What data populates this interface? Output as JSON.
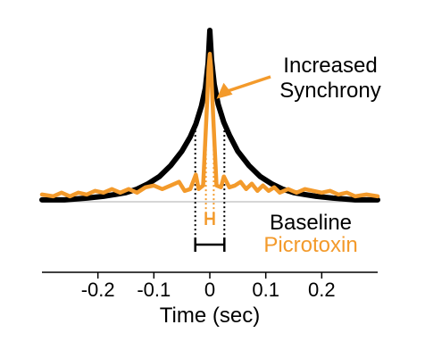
{
  "chart_data": {
    "type": "line",
    "title": "",
    "xlabel": "Time (sec)",
    "ylabel": "",
    "xlim": [
      -0.3,
      0.3
    ],
    "ylim": [
      0,
      1
    ],
    "grid": false,
    "x_ticks": [
      -0.2,
      -0.1,
      0,
      0.1,
      0.2
    ],
    "x_tick_labels": [
      "-0.2",
      "-0.1",
      "0",
      "0.1",
      "0.2"
    ],
    "baseline_level": 0.03,
    "series": [
      {
        "name": "Baseline",
        "color": "#000000",
        "points": [
          [
            -0.3,
            0.04
          ],
          [
            -0.26,
            0.04
          ],
          [
            -0.22,
            0.05
          ],
          [
            -0.19,
            0.06
          ],
          [
            -0.17,
            0.07
          ],
          [
            -0.15,
            0.08
          ],
          [
            -0.13,
            0.1
          ],
          [
            -0.11,
            0.13
          ],
          [
            -0.09,
            0.17
          ],
          [
            -0.07,
            0.23
          ],
          [
            -0.05,
            0.31
          ],
          [
            -0.035,
            0.39
          ],
          [
            -0.025,
            0.46
          ],
          [
            -0.015,
            0.56
          ],
          [
            -0.008,
            0.66
          ],
          [
            -0.003,
            0.8
          ],
          [
            0,
            0.98
          ],
          [
            0.003,
            0.82
          ],
          [
            0.008,
            0.68
          ],
          [
            0.015,
            0.57
          ],
          [
            0.025,
            0.47
          ],
          [
            0.035,
            0.4
          ],
          [
            0.05,
            0.31
          ],
          [
            0.07,
            0.23
          ],
          [
            0.09,
            0.17
          ],
          [
            0.11,
            0.13
          ],
          [
            0.13,
            0.1
          ],
          [
            0.15,
            0.08
          ],
          [
            0.17,
            0.07
          ],
          [
            0.19,
            0.06
          ],
          [
            0.22,
            0.05
          ],
          [
            0.26,
            0.04
          ],
          [
            0.3,
            0.04
          ]
        ]
      },
      {
        "name": "Picrotoxin",
        "color": "#f39a2b",
        "points": [
          [
            -0.3,
            0.07
          ],
          [
            -0.28,
            0.06
          ],
          [
            -0.265,
            0.08
          ],
          [
            -0.25,
            0.06
          ],
          [
            -0.235,
            0.08
          ],
          [
            -0.22,
            0.07
          ],
          [
            -0.205,
            0.09
          ],
          [
            -0.19,
            0.08
          ],
          [
            -0.175,
            0.1
          ],
          [
            -0.16,
            0.08
          ],
          [
            -0.145,
            0.1
          ],
          [
            -0.13,
            0.08
          ],
          [
            -0.115,
            0.11
          ],
          [
            -0.1,
            0.12
          ],
          [
            -0.085,
            0.1
          ],
          [
            -0.07,
            0.12
          ],
          [
            -0.055,
            0.14
          ],
          [
            -0.045,
            0.09
          ],
          [
            -0.035,
            0.1
          ],
          [
            -0.025,
            0.18
          ],
          [
            -0.02,
            0.1
          ],
          [
            -0.012,
            0.12
          ],
          [
            -0.006,
            0.5
          ],
          [
            -0.002,
            0.78
          ],
          [
            0,
            0.85
          ],
          [
            0.002,
            0.78
          ],
          [
            0.006,
            0.5
          ],
          [
            0.012,
            0.12
          ],
          [
            0.02,
            0.11
          ],
          [
            0.025,
            0.17
          ],
          [
            0.035,
            0.11
          ],
          [
            0.045,
            0.12
          ],
          [
            0.055,
            0.14
          ],
          [
            0.065,
            0.1
          ],
          [
            0.075,
            0.13
          ],
          [
            0.085,
            0.09
          ],
          [
            0.095,
            0.12
          ],
          [
            0.105,
            0.09
          ],
          [
            0.115,
            0.11
          ],
          [
            0.125,
            0.08
          ],
          [
            0.14,
            0.1
          ],
          [
            0.155,
            0.08
          ],
          [
            0.17,
            0.1
          ],
          [
            0.185,
            0.09
          ],
          [
            0.2,
            0.08
          ],
          [
            0.215,
            0.09
          ],
          [
            0.23,
            0.07
          ],
          [
            0.245,
            0.08
          ],
          [
            0.26,
            0.06
          ],
          [
            0.28,
            0.07
          ],
          [
            0.3,
            0.06
          ]
        ]
      }
    ],
    "annotations": {
      "increased_synchrony": {
        "lines": [
          "Increased",
          "Synchrony"
        ],
        "color": "#000000"
      },
      "baseline_width_label": "Baseline",
      "picrotoxin_width_label": "Picrotoxin",
      "baseline_width_half": 0.026,
      "picrotoxin_width_half": 0.007
    }
  }
}
